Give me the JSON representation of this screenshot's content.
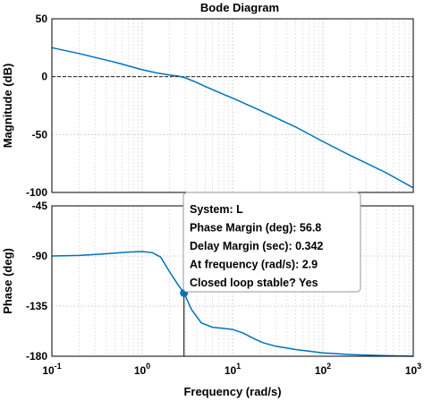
{
  "chart_data": {
    "type": "line",
    "title": "Bode Diagram",
    "xlabel": "Frequency  (rad/s)",
    "xscale": "log",
    "xlim": [
      0.1,
      1000
    ],
    "xticks": [
      {
        "value": 0.1,
        "base": "10",
        "exp": "-1"
      },
      {
        "value": 1,
        "base": "10",
        "exp": "0"
      },
      {
        "value": 10,
        "base": "10",
        "exp": "1"
      },
      {
        "value": 100,
        "base": "10",
        "exp": "2"
      },
      {
        "value": 1000,
        "base": "10",
        "exp": "3"
      }
    ],
    "grid": true,
    "line_color": "#0072BD",
    "panels": [
      {
        "name": "magnitude",
        "ylabel": "Magnitude (dB)",
        "ylim": [
          -100,
          50
        ],
        "yticks": [
          50,
          0,
          -50,
          -100
        ],
        "reference_line": 0,
        "x": [
          0.1,
          0.2,
          0.5,
          1,
          1.5,
          2,
          2.5,
          3,
          4,
          5,
          7,
          10,
          20,
          50,
          100,
          200,
          500,
          1000
        ],
        "y": [
          25,
          20,
          12.5,
          6,
          3,
          1.5,
          0.5,
          -1,
          -5,
          -8.5,
          -13.5,
          -18.5,
          -29,
          -43.5,
          -56,
          -68,
          -83,
          -96
        ]
      },
      {
        "name": "phase",
        "ylabel": "Phase (deg)",
        "ylim": [
          -180,
          -45
        ],
        "yticks": [
          -45,
          -90,
          -135,
          -180
        ],
        "x": [
          0.1,
          0.2,
          0.4,
          0.7,
          1,
          1.3,
          1.6,
          2,
          2.5,
          2.9,
          3.5,
          4.5,
          6,
          8,
          10,
          13,
          17,
          22,
          30,
          50,
          100,
          200,
          500,
          1000
        ],
        "y": [
          -90,
          -89.5,
          -88,
          -86.5,
          -86,
          -87,
          -91,
          -104,
          -116,
          -123.2,
          -138,
          -150,
          -154,
          -155,
          -156,
          -159,
          -164,
          -168,
          -171,
          -174,
          -177,
          -178.5,
          -179.5,
          -180
        ]
      }
    ],
    "annotation": {
      "marker_x": 2.9,
      "marker_y": -123.2,
      "lines": [
        "System: L",
        "Phase Margin (deg): 56.8",
        "Delay Margin (sec): 0.342",
        "At frequency (rad/s): 2.9",
        "Closed loop stable? Yes"
      ]
    }
  }
}
